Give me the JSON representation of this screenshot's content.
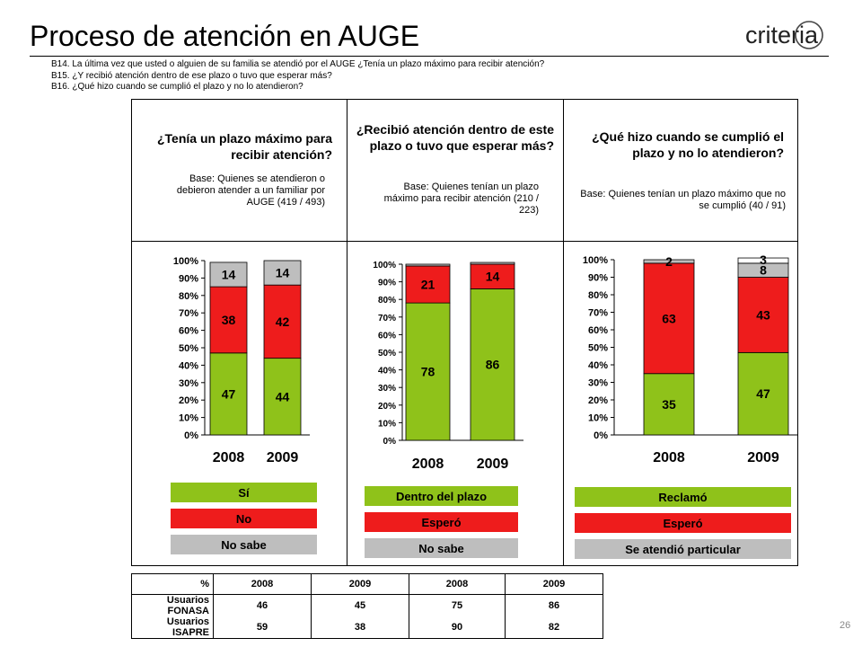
{
  "header": {
    "title": "Proceso de atención en AUGE",
    "logo_text": "criteria",
    "questions": [
      "B14. La última vez que usted o alguien de su familia se atendió por el AUGE ¿Tenía un plazo máximo para recibir atención?",
      "B15. ¿Y recibió atención dentro de ese plazo o tuvo que esperar más?",
      "B16. ¿Qué hizo cuando se cumplió el plazo y no lo atendieron?"
    ]
  },
  "panels": [
    {
      "question": "¿Tenía un plazo máximo para recibir atención?",
      "base": "Base: Quienes se atendieron o debieron atender a un familiar por AUGE (419 / 493)",
      "legend": [
        "Sí",
        "No",
        "No sabe"
      ]
    },
    {
      "question": "¿Recibió atención dentro de este plazo o tuvo que esperar más?",
      "base": "Base: Quienes tenían un plazo máximo para recibir atención (210 / 223)",
      "legend": [
        "Dentro del plazo",
        "Esperó",
        "No sabe"
      ]
    },
    {
      "question": "¿Qué hizo cuando se cumplió el plazo y no lo atendieron?",
      "base": "Base: Quienes tenían un plazo máximo que no se cumplió (40 / 91)",
      "legend": [
        "Reclamó",
        "Esperó",
        "Se atendió particular"
      ]
    }
  ],
  "colors": {
    "green": "#8fc21a",
    "red": "#ee1c1c",
    "gray": "#bebebe",
    "white": "#ffffff"
  },
  "chart_data": [
    {
      "type": "bar",
      "stacked": true,
      "categories": [
        "2008",
        "2009"
      ],
      "yticks": [
        "0%",
        "10%",
        "20%",
        "30%",
        "40%",
        "50%",
        "60%",
        "70%",
        "80%",
        "90%",
        "100%"
      ],
      "ylim": [
        0,
        100
      ],
      "series": [
        {
          "name": "Sí",
          "color": "#8fc21a",
          "values": [
            47,
            44
          ]
        },
        {
          "name": "No",
          "color": "#ee1c1c",
          "values": [
            38,
            42
          ]
        },
        {
          "name": "No sabe",
          "color": "#bebebe",
          "values": [
            14,
            14
          ]
        }
      ]
    },
    {
      "type": "bar",
      "stacked": true,
      "categories": [
        "2008",
        "2009"
      ],
      "yticks": [
        "0%",
        "10%",
        "20%",
        "30%",
        "40%",
        "50%",
        "60%",
        "70%",
        "80%",
        "90%",
        "100%"
      ],
      "ylim": [
        0,
        100
      ],
      "series": [
        {
          "name": "Dentro del plazo",
          "color": "#8fc21a",
          "values": [
            78,
            86
          ]
        },
        {
          "name": "Esperó",
          "color": "#ee1c1c",
          "values": [
            21,
            14
          ]
        },
        {
          "name": "No sabe",
          "color": "#bebebe",
          "values": [
            1,
            1
          ]
        }
      ]
    },
    {
      "type": "bar",
      "stacked": true,
      "categories": [
        "2008",
        "2009"
      ],
      "yticks": [
        "0%",
        "10%",
        "20%",
        "30%",
        "40%",
        "50%",
        "60%",
        "70%",
        "80%",
        "90%",
        "100%"
      ],
      "ylim": [
        0,
        100
      ],
      "series": [
        {
          "name": "Reclamó",
          "color": "#8fc21a",
          "values": [
            35,
            47
          ]
        },
        {
          "name": "Esperó",
          "color": "#ee1c1c",
          "values": [
            63,
            43
          ]
        },
        {
          "name": "Se atendió particular",
          "color": "#bebebe",
          "values": [
            2,
            8
          ]
        },
        {
          "name": "",
          "color": "#ffffff",
          "values": [
            0,
            3
          ]
        }
      ]
    }
  ],
  "table": {
    "header": [
      "%",
      "2008",
      "2009",
      "2008",
      "2009"
    ],
    "rows": [
      [
        "Usuarios FONASA",
        "46",
        "45",
        "75",
        "86"
      ],
      [
        "Usuarios ISAPRE",
        "59",
        "38",
        "90",
        "82"
      ]
    ]
  },
  "page_number": "26"
}
